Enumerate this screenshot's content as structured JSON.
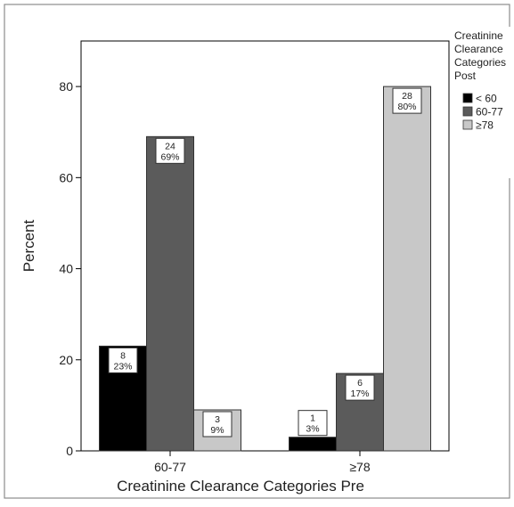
{
  "chart_data": {
    "type": "bar",
    "xlabel": "Creatinine Clearance Categories Pre",
    "ylabel": "Percent",
    "ylim": [
      0,
      90
    ],
    "yticks": [
      0,
      20,
      40,
      60,
      80
    ],
    "categories": [
      "60-77",
      "≥78"
    ],
    "legend": {
      "title_lines": [
        "Creatinine",
        "Clearance",
        "Categories",
        "Post"
      ],
      "placement": "right"
    },
    "series": [
      {
        "name": "< 60",
        "color": "#000000",
        "values": [
          23,
          3
        ],
        "counts": [
          8,
          1
        ],
        "labels": [
          "23%",
          "3%"
        ]
      },
      {
        "name": "60-77",
        "color": "#5b5b5b",
        "values": [
          69,
          17
        ],
        "counts": [
          24,
          6
        ],
        "labels": [
          "69%",
          "17%"
        ]
      },
      {
        "name": "≥78",
        "color": "#c8c8c8",
        "values": [
          9,
          80
        ],
        "counts": [
          3,
          28
        ],
        "labels": [
          "9%",
          "80%"
        ]
      }
    ]
  }
}
